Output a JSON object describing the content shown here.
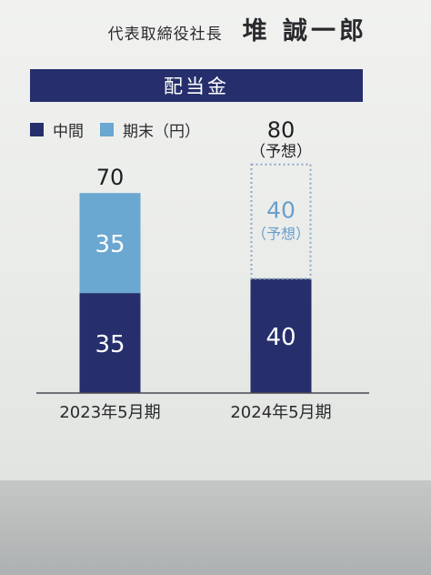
{
  "header": {
    "title": "代表取締役社長",
    "name": "堆 誠一郎"
  },
  "banner": {
    "label": "配当金"
  },
  "legend": {
    "items": [
      {
        "label": "中間",
        "color": "#262f6c"
      },
      {
        "label": "期末（円）",
        "color": "#6aa7d1"
      }
    ]
  },
  "colors": {
    "interim": "#262f6c",
    "year_end": "#6aa7d1",
    "forecast_outline": "#8aa8c7",
    "forecast_text": "#6a9fcc"
  },
  "chart_data": {
    "type": "bar",
    "stacked": true,
    "title": "配当金",
    "categories": [
      "2023年5月期",
      "2024年5月期"
    ],
    "series": [
      {
        "name": "中間",
        "values": [
          35,
          40
        ]
      },
      {
        "name": "期末（円）",
        "values": [
          35,
          40
        ]
      }
    ],
    "totals": [
      "70",
      "80"
    ],
    "forecast_note": "（予想）",
    "forecast": [
      false,
      true
    ],
    "ylim": [
      0,
      80
    ],
    "grid": false,
    "legend_position": "top-left"
  }
}
